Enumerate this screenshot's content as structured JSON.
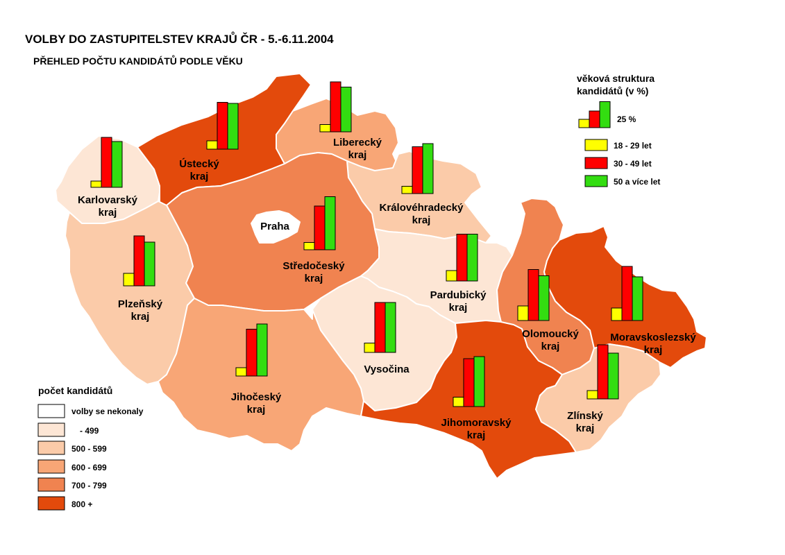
{
  "title": "VOLBY DO ZASTUPITELSTEV KRAJŮ ČR - 5.-6.11.2004",
  "subtitle": "PŘEHLED POČTU KANDIDÁTŮ PODLE VĚKU",
  "age_legend": {
    "title_line1": "věková struktura",
    "title_line2": "kandidátů (v %)",
    "scale_label": "25 %",
    "groups": [
      {
        "label": "18 - 29 let",
        "color": "#ffff00"
      },
      {
        "label": "30 - 49 let",
        "color": "#ff0000"
      },
      {
        "label": "50 a více let",
        "color": "#33dd11"
      }
    ]
  },
  "count_legend": {
    "title": "počet kandidátů",
    "classes": [
      {
        "label": "volby se nekonaly",
        "color": "#ffffff"
      },
      {
        "label": "- 499",
        "color": "#fde6d5"
      },
      {
        "label": "500 - 599",
        "color": "#fbcba9"
      },
      {
        "label": "600 - 699",
        "color": "#f8a676"
      },
      {
        "label": "700 - 799",
        "color": "#f08350"
      },
      {
        "label": "800 +",
        "color": "#e34a0c"
      }
    ]
  },
  "regions": [
    {
      "key": "karlovarsky",
      "line1": "Karlovarský",
      "line2": "kraj",
      "class_index": 1,
      "age": [
        6,
        48,
        44
      ]
    },
    {
      "key": "ustecky",
      "line1": "Ústecký",
      "line2": "kraj",
      "class_index": 5,
      "age": [
        8,
        45,
        44
      ]
    },
    {
      "key": "liberecky",
      "line1": "Liberecký",
      "line2": "kraj",
      "class_index": 3,
      "age": [
        7,
        48,
        43
      ]
    },
    {
      "key": "kralovehradecky",
      "line1": "Královéhradecký",
      "line2": "kraj",
      "class_index": 2,
      "age": [
        7,
        45,
        48
      ]
    },
    {
      "key": "praha",
      "line1": "Praha",
      "line2": "",
      "class_index": 0,
      "age": null
    },
    {
      "key": "stredocesky",
      "line1": "Středočeský",
      "line2": "kraj",
      "class_index": 4,
      "age": [
        7,
        42,
        51
      ]
    },
    {
      "key": "plzensky",
      "line1": "Plzeňský",
      "line2": "kraj",
      "class_index": 2,
      "age": [
        12,
        48,
        42
      ]
    },
    {
      "key": "pardubicky",
      "line1": "Pardubický",
      "line2": "kraj",
      "class_index": 1,
      "age": [
        10,
        45,
        45
      ]
    },
    {
      "key": "vysocina",
      "line1": "Vysočina",
      "line2": "",
      "class_index": 1,
      "age": [
        9,
        48,
        48
      ]
    },
    {
      "key": "jihocesky",
      "line1": "Jihočeský",
      "line2": "kraj",
      "class_index": 3,
      "age": [
        8,
        45,
        50
      ]
    },
    {
      "key": "jihomoravsky",
      "line1": "Jihomoravský",
      "line2": "kraj",
      "class_index": 5,
      "age": [
        9,
        46,
        48
      ]
    },
    {
      "key": "olomoucky",
      "line1": "Olomoucký",
      "line2": "kraj",
      "class_index": 4,
      "age": [
        14,
        49,
        43
      ]
    },
    {
      "key": "moravskoslezsky",
      "line1": "Moravskoslezský",
      "line2": "kraj",
      "class_index": 5,
      "age": [
        12,
        52,
        42
      ]
    },
    {
      "key": "zlinsky",
      "line1": "Zlínský",
      "line2": "kraj",
      "class_index": 2,
      "age": [
        8,
        52,
        44
      ]
    }
  ]
}
